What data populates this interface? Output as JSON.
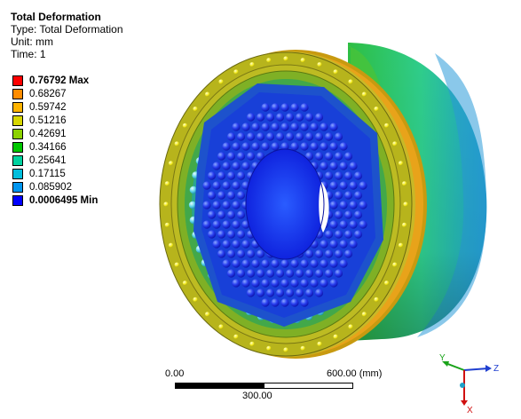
{
  "info": {
    "title": "Total Deformation",
    "type": "Type: Total Deformation",
    "unit": "Unit: mm",
    "time": "Time: 1"
  },
  "legend": {
    "items": [
      {
        "label": "0.76792 Max",
        "color": "#ff0000",
        "bold": true
      },
      {
        "label": "0.68267",
        "color": "#ff8c00",
        "bold": false
      },
      {
        "label": "0.59742",
        "color": "#ffb400",
        "bold": false
      },
      {
        "label": "0.51216",
        "color": "#d7d700",
        "bold": false
      },
      {
        "label": "0.42691",
        "color": "#8cd200",
        "bold": false
      },
      {
        "label": "0.34166",
        "color": "#00c800",
        "bold": false
      },
      {
        "label": "0.25641",
        "color": "#00d2a0",
        "bold": false
      },
      {
        "label": "0.17115",
        "color": "#00bedc",
        "bold": false
      },
      {
        "label": "0.085902",
        "color": "#0096f0",
        "bold": false
      },
      {
        "label": "0.0006495 Min",
        "color": "#0000ff",
        "bold": true
      }
    ]
  },
  "scale_bar": {
    "left_label": "0.00",
    "right_label": "600.00 (mm)",
    "middle_label": "300.00"
  },
  "triad": {
    "x_label": "X",
    "y_label": "Y",
    "z_label": "Z"
  }
}
